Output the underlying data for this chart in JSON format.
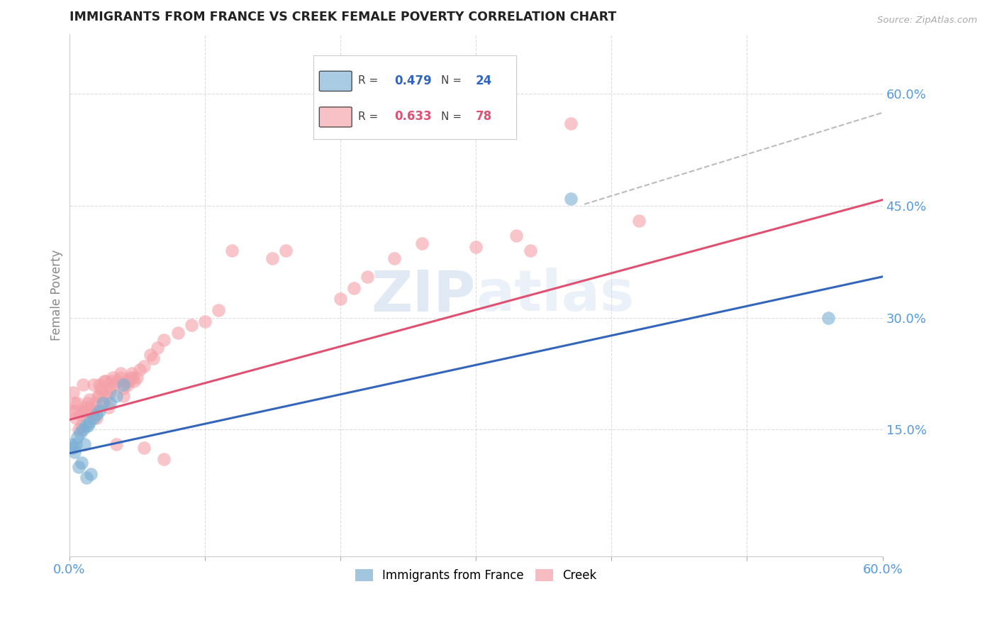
{
  "title": "IMMIGRANTS FROM FRANCE VS CREEK FEMALE POVERTY CORRELATION CHART",
  "source": "Source: ZipAtlas.com",
  "ylabel": "Female Poverty",
  "xlim": [
    0.0,
    0.6
  ],
  "ylim": [
    -0.02,
    0.68
  ],
  "yticks": [
    0.15,
    0.3,
    0.45,
    0.6
  ],
  "ytick_labels": [
    "15.0%",
    "30.0%",
    "45.0%",
    "60.0%"
  ],
  "blue_color": "#7BAFD4",
  "pink_color": "#F4A0A8",
  "blue_line_color": "#3366BB",
  "pink_line_color": "#E05070",
  "dashed_line_color": "#BBBBBB",
  "watermark_color": "#C8D8EC",
  "background_color": "#FFFFFF",
  "title_color": "#222222",
  "axis_label_color": "#5599DD",
  "blue_r": "0.479",
  "blue_n": "24",
  "pink_r": "0.633",
  "pink_n": "78",
  "blue_scatter_x": [
    0.002,
    0.003,
    0.004,
    0.005,
    0.006,
    0.007,
    0.008,
    0.009,
    0.01,
    0.011,
    0.012,
    0.013,
    0.014,
    0.015,
    0.016,
    0.018,
    0.02,
    0.022,
    0.025,
    0.03,
    0.035,
    0.04,
    0.37,
    0.56
  ],
  "blue_scatter_y": [
    0.13,
    0.125,
    0.12,
    0.13,
    0.14,
    0.1,
    0.145,
    0.105,
    0.15,
    0.13,
    0.155,
    0.085,
    0.155,
    0.16,
    0.09,
    0.165,
    0.17,
    0.175,
    0.185,
    0.185,
    0.195,
    0.21,
    0.46,
    0.3
  ],
  "pink_scatter_x": [
    0.002,
    0.003,
    0.004,
    0.005,
    0.005,
    0.006,
    0.007,
    0.008,
    0.009,
    0.01,
    0.01,
    0.011,
    0.012,
    0.012,
    0.013,
    0.014,
    0.015,
    0.015,
    0.016,
    0.017,
    0.018,
    0.018,
    0.019,
    0.02,
    0.021,
    0.022,
    0.022,
    0.023,
    0.025,
    0.025,
    0.026,
    0.027,
    0.028,
    0.029,
    0.03,
    0.03,
    0.031,
    0.032,
    0.033,
    0.035,
    0.036,
    0.038,
    0.038,
    0.04,
    0.04,
    0.042,
    0.043,
    0.044,
    0.045,
    0.046,
    0.047,
    0.048,
    0.05,
    0.052,
    0.055,
    0.055,
    0.06,
    0.062,
    0.065,
    0.07,
    0.07,
    0.08,
    0.09,
    0.1,
    0.11,
    0.12,
    0.15,
    0.16,
    0.2,
    0.21,
    0.22,
    0.24,
    0.26,
    0.3,
    0.33,
    0.34,
    0.37,
    0.42
  ],
  "pink_scatter_y": [
    0.175,
    0.2,
    0.185,
    0.175,
    0.165,
    0.185,
    0.15,
    0.17,
    0.155,
    0.175,
    0.21,
    0.175,
    0.17,
    0.18,
    0.175,
    0.185,
    0.175,
    0.19,
    0.18,
    0.17,
    0.175,
    0.21,
    0.185,
    0.165,
    0.195,
    0.195,
    0.21,
    0.205,
    0.185,
    0.2,
    0.215,
    0.215,
    0.195,
    0.18,
    0.205,
    0.2,
    0.215,
    0.22,
    0.21,
    0.13,
    0.215,
    0.22,
    0.225,
    0.195,
    0.205,
    0.215,
    0.21,
    0.215,
    0.22,
    0.225,
    0.22,
    0.215,
    0.22,
    0.23,
    0.125,
    0.235,
    0.25,
    0.245,
    0.26,
    0.27,
    0.11,
    0.28,
    0.29,
    0.295,
    0.31,
    0.39,
    0.38,
    0.39,
    0.325,
    0.34,
    0.355,
    0.38,
    0.4,
    0.395,
    0.41,
    0.39,
    0.56,
    0.43
  ]
}
